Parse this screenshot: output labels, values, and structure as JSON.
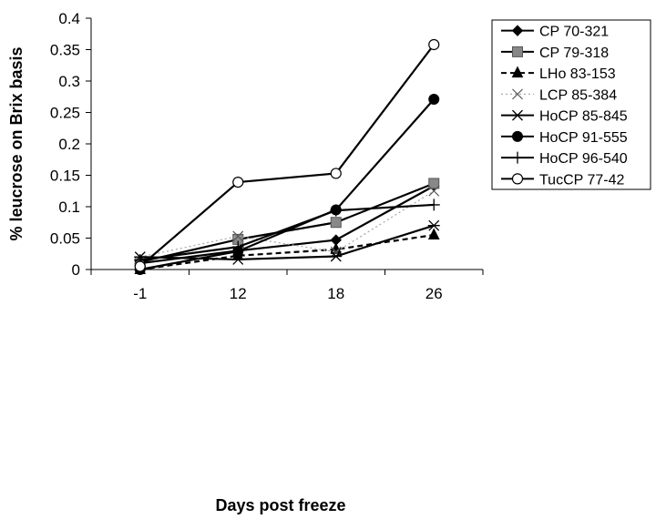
{
  "chart_data": {
    "type": "line",
    "title": "",
    "xlabel": "Days post freeze",
    "ylabel": "% leucrose on Brix basis",
    "categories": [
      "-1",
      "12",
      "18",
      "26"
    ],
    "y_ticks": [
      "0",
      "0.05",
      "0.1",
      "0.15",
      "0.2",
      "0.25",
      "0.3",
      "0.35",
      "0.4"
    ],
    "ylim": [
      0,
      0.4
    ],
    "grid": false,
    "legend_position": "right",
    "series": [
      {
        "name": "CP 70-321",
        "values": [
          0.01,
          0.03,
          0.047,
          0.133
        ],
        "color": "#000000",
        "dash": "solid",
        "marker": "diamond"
      },
      {
        "name": "CP 79-318",
        "values": [
          0.012,
          0.048,
          0.075,
          0.137
        ],
        "color": "#000000",
        "dash": "solid",
        "marker": "square"
      },
      {
        "name": "LHo 83-153",
        "values": [
          0.0,
          0.022,
          0.032,
          0.055
        ],
        "color": "#000000",
        "dash": "dashed",
        "marker": "triangle"
      },
      {
        "name": "LCP 85-384",
        "values": [
          0.02,
          0.053,
          0.028,
          0.125
        ],
        "color": "#aaaaaa",
        "dash": "dotted",
        "marker": "x"
      },
      {
        "name": "HoCP 85-845",
        "values": [
          0.02,
          0.016,
          0.021,
          0.07
        ],
        "color": "#000000",
        "dash": "solid",
        "marker": "asterisk"
      },
      {
        "name": "HoCP 91-555",
        "values": [
          0.0,
          0.029,
          0.095,
          0.271
        ],
        "color": "#000000",
        "dash": "solid",
        "marker": "circle-filled"
      },
      {
        "name": "HoCP 96-540",
        "values": [
          0.015,
          0.036,
          0.094,
          0.103
        ],
        "color": "#000000",
        "dash": "solid",
        "marker": "plus"
      },
      {
        "name": "TucCP 77-42",
        "values": [
          0.005,
          0.139,
          0.153,
          0.358
        ],
        "color": "#000000",
        "dash": "solid",
        "marker": "circle-open"
      }
    ]
  }
}
